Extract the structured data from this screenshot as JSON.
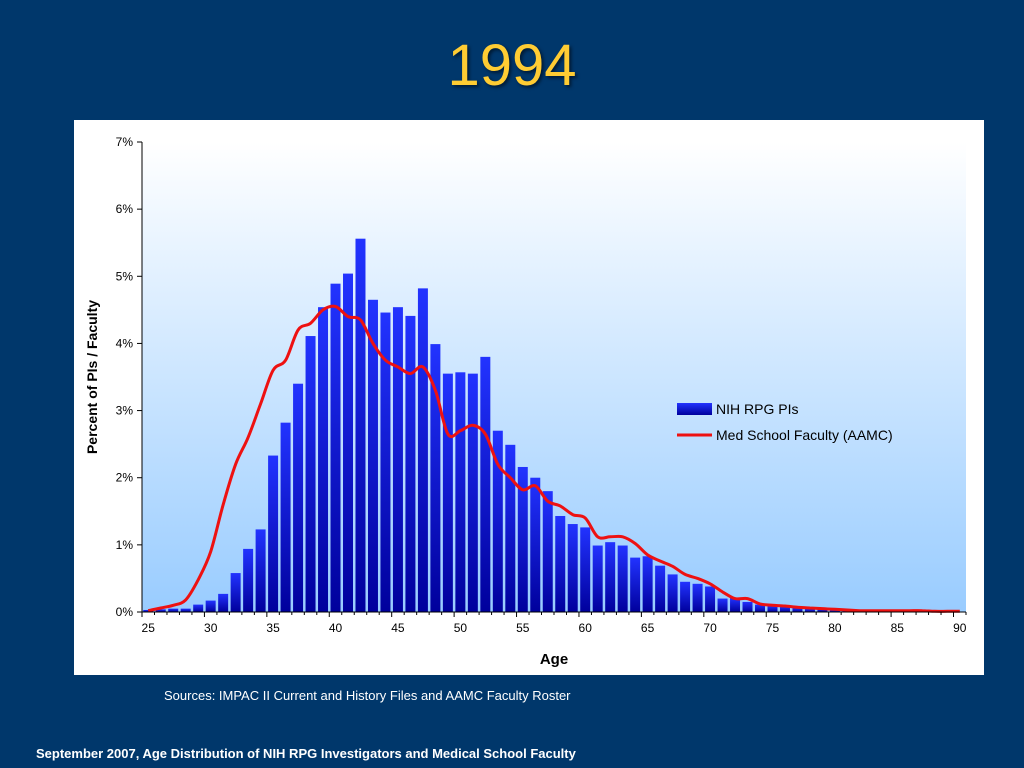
{
  "slide": {
    "title": "1994",
    "sources": "Sources:  IMPAC II Current and History Files and AAMC Faculty Roster",
    "footer": "September 2007, Age Distribution of NIH RPG Investigators and Medical School Faculty"
  },
  "colors": {
    "background": "#00376b",
    "title": "#ffcc33",
    "bar_top": "#2233ff",
    "bar_bottom": "#00009c",
    "line": "#ee1111",
    "plot_top": "#ffffff",
    "plot_bottom": "#99ccff"
  },
  "chart_data": {
    "type": "bar",
    "xlabel": "Age",
    "ylabel": "Percent of PIs / Faculty",
    "xlim": [
      25,
      90
    ],
    "ylim": [
      0,
      7
    ],
    "x_ticks": [
      "25",
      "30",
      "35",
      "40",
      "45",
      "50",
      "55",
      "60",
      "65",
      "70",
      "75",
      "80",
      "85",
      "90"
    ],
    "y_ticks": [
      "0%",
      "1%",
      "2%",
      "3%",
      "4%",
      "5%",
      "6%",
      "7%"
    ],
    "grid": false,
    "legend_position": "right",
    "series": [
      {
        "name": "NIH RPG PIs",
        "type": "bar",
        "x": [
          25,
          26,
          27,
          28,
          29,
          30,
          31,
          32,
          33,
          34,
          35,
          36,
          37,
          38,
          39,
          40,
          41,
          42,
          43,
          44,
          45,
          46,
          47,
          48,
          49,
          50,
          51,
          52,
          53,
          54,
          55,
          56,
          57,
          58,
          59,
          60,
          61,
          62,
          63,
          64,
          65,
          66,
          67,
          68,
          69,
          70,
          71,
          72,
          73,
          74,
          75,
          76,
          77,
          78,
          79,
          80,
          81,
          82,
          83,
          84,
          85,
          86,
          87,
          88,
          89
        ],
        "values": [
          0.03,
          0.04,
          0.05,
          0.05,
          0.11,
          0.17,
          0.27,
          0.58,
          0.94,
          1.23,
          2.33,
          2.82,
          3.4,
          4.11,
          4.54,
          4.89,
          5.04,
          5.56,
          4.65,
          4.46,
          4.54,
          4.41,
          4.82,
          3.99,
          3.55,
          3.57,
          3.55,
          3.8,
          2.7,
          2.49,
          2.16,
          2.0,
          1.8,
          1.43,
          1.31,
          1.26,
          0.99,
          1.04,
          0.99,
          0.81,
          0.83,
          0.69,
          0.56,
          0.45,
          0.42,
          0.38,
          0.2,
          0.21,
          0.15,
          0.11,
          0.09,
          0.08,
          0.06,
          0.05,
          0.05,
          0.03,
          0.03,
          0.02,
          0.02,
          0.02,
          0.02,
          0.02,
          0.01,
          0.01,
          0.01
        ]
      },
      {
        "name": "Med School Faculty (AAMC)",
        "type": "line",
        "x": [
          25,
          26,
          27,
          28,
          29,
          30,
          31,
          32,
          33,
          34,
          35,
          36,
          37,
          38,
          39,
          40,
          41,
          42,
          43,
          44,
          45,
          46,
          47,
          48,
          49,
          50,
          51,
          52,
          53,
          54,
          55,
          56,
          57,
          58,
          59,
          60,
          61,
          62,
          63,
          64,
          65,
          66,
          67,
          68,
          69,
          70,
          71,
          72,
          73,
          74,
          75,
          76,
          77,
          78,
          79,
          80,
          81,
          82,
          83,
          84,
          85,
          86,
          87,
          88,
          89,
          90
        ],
        "values": [
          0.02,
          0.06,
          0.1,
          0.18,
          0.48,
          0.9,
          1.6,
          2.2,
          2.6,
          3.1,
          3.6,
          3.75,
          4.2,
          4.3,
          4.5,
          4.55,
          4.4,
          4.35,
          4.0,
          3.75,
          3.65,
          3.55,
          3.65,
          3.3,
          2.65,
          2.7,
          2.78,
          2.65,
          2.2,
          2.0,
          1.82,
          1.88,
          1.65,
          1.58,
          1.45,
          1.4,
          1.12,
          1.12,
          1.12,
          1.02,
          0.85,
          0.76,
          0.68,
          0.56,
          0.5,
          0.42,
          0.3,
          0.2,
          0.2,
          0.12,
          0.1,
          0.09,
          0.07,
          0.06,
          0.05,
          0.04,
          0.03,
          0.02,
          0.02,
          0.02,
          0.02,
          0.02,
          0.02,
          0.01,
          0.01,
          0.01
        ]
      }
    ]
  }
}
